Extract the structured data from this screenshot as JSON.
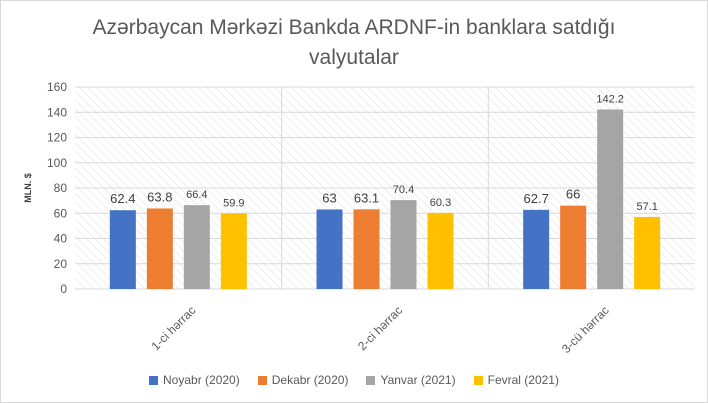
{
  "chart_data": {
    "type": "bar",
    "title_lines": [
      "Azərbaycan Mərkəzi Bankda ARDNF-in banklara satdığı",
      "valyutalar"
    ],
    "ylabel": "MLN. $",
    "xlabel": "",
    "ylim": [
      0,
      160
    ],
    "yticks": [
      0,
      20,
      40,
      60,
      80,
      100,
      120,
      140,
      160
    ],
    "grid": true,
    "legend_position": "bottom",
    "categories": [
      "1-ci hərrac",
      "2-ci hərrac",
      "3-cü hərrac"
    ],
    "series": [
      {
        "name": "Noyabr (2020)",
        "color": "#4472C4",
        "values": [
          62.4,
          63,
          62.7
        ],
        "labels": [
          "62.4",
          "63",
          "62.7"
        ]
      },
      {
        "name": "Dekabr (2020)",
        "color": "#ED7D31",
        "values": [
          63.8,
          63.1,
          66
        ],
        "labels": [
          "63.8",
          "63.1",
          "66"
        ]
      },
      {
        "name": "Yanvar (2021)",
        "color": "#A5A5A5",
        "values": [
          66.4,
          70.4,
          142.2
        ],
        "labels": [
          "66.4",
          "70.4",
          "142.2"
        ]
      },
      {
        "name": "Fevral (2021)",
        "color": "#FFC000",
        "values": [
          59.9,
          60.3,
          57.1
        ],
        "labels": [
          "59.9",
          "60.3",
          "57.1"
        ]
      }
    ]
  }
}
